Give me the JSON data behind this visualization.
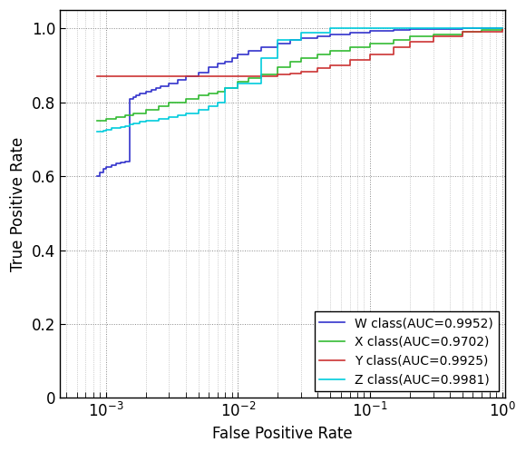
{
  "title": "",
  "xlabel": "False Positive Rate",
  "ylabel": "True Positive Rate",
  "ylim": [
    0,
    1.05
  ],
  "grid": true,
  "legend_loc": "lower right",
  "curves": [
    {
      "label": "W class(AUC=0.9952)",
      "color": "#3333CC",
      "x": [
        0.00085,
        0.0009,
        0.00095,
        0.001,
        0.0011,
        0.0012,
        0.0013,
        0.0014,
        0.0015,
        0.0016,
        0.0017,
        0.0018,
        0.002,
        0.0022,
        0.0024,
        0.0026,
        0.003,
        0.0035,
        0.004,
        0.005,
        0.006,
        0.007,
        0.008,
        0.009,
        0.01,
        0.012,
        0.015,
        0.02,
        0.025,
        0.03,
        0.04,
        0.05,
        0.07,
        0.1,
        0.15,
        0.2,
        0.3,
        0.5,
        0.7,
        1.0
      ],
      "y": [
        0.6,
        0.61,
        0.62,
        0.625,
        0.63,
        0.635,
        0.638,
        0.64,
        0.81,
        0.815,
        0.82,
        0.825,
        0.83,
        0.835,
        0.84,
        0.845,
        0.85,
        0.86,
        0.87,
        0.88,
        0.895,
        0.905,
        0.91,
        0.92,
        0.93,
        0.94,
        0.95,
        0.96,
        0.968,
        0.975,
        0.98,
        0.985,
        0.99,
        0.993,
        0.997,
        0.998,
        0.999,
        1.0,
        1.0,
        1.0
      ]
    },
    {
      "label": "X class(AUC=0.9702)",
      "color": "#33BB33",
      "x": [
        0.00085,
        0.001,
        0.0012,
        0.0014,
        0.0016,
        0.002,
        0.0025,
        0.003,
        0.004,
        0.005,
        0.006,
        0.007,
        0.008,
        0.01,
        0.012,
        0.015,
        0.02,
        0.025,
        0.03,
        0.04,
        0.05,
        0.07,
        0.1,
        0.15,
        0.2,
        0.3,
        0.5,
        0.7,
        1.0
      ],
      "y": [
        0.75,
        0.755,
        0.76,
        0.765,
        0.77,
        0.78,
        0.79,
        0.8,
        0.81,
        0.82,
        0.825,
        0.83,
        0.84,
        0.855,
        0.865,
        0.875,
        0.895,
        0.91,
        0.92,
        0.93,
        0.94,
        0.95,
        0.96,
        0.97,
        0.978,
        0.985,
        0.992,
        0.997,
        1.0
      ]
    },
    {
      "label": "Y class(AUC=0.9925)",
      "color": "#CC3333",
      "x": [
        0.00085,
        0.001,
        0.002,
        0.004,
        0.006,
        0.008,
        0.01,
        0.012,
        0.015,
        0.018,
        0.02,
        0.025,
        0.03,
        0.04,
        0.05,
        0.07,
        0.1,
        0.15,
        0.2,
        0.3,
        0.5,
        1.0
      ],
      "y": [
        0.87,
        0.87,
        0.87,
        0.87,
        0.87,
        0.87,
        0.87,
        0.87,
        0.87,
        0.87,
        0.875,
        0.878,
        0.882,
        0.892,
        0.9,
        0.915,
        0.93,
        0.95,
        0.965,
        0.98,
        0.992,
        1.0
      ]
    },
    {
      "label": "Z class(AUC=0.9981)",
      "color": "#00CCDD",
      "x": [
        0.00085,
        0.0009,
        0.00095,
        0.001,
        0.0011,
        0.0012,
        0.0013,
        0.0014,
        0.0015,
        0.0016,
        0.0017,
        0.0018,
        0.002,
        0.0025,
        0.003,
        0.0035,
        0.004,
        0.005,
        0.006,
        0.007,
        0.008,
        0.01,
        0.015,
        0.02,
        0.03,
        0.05,
        0.07,
        0.1,
        0.3,
        1.0
      ],
      "y": [
        0.72,
        0.722,
        0.724,
        0.727,
        0.73,
        0.732,
        0.734,
        0.736,
        0.74,
        0.742,
        0.744,
        0.748,
        0.75,
        0.755,
        0.76,
        0.765,
        0.77,
        0.78,
        0.79,
        0.8,
        0.84,
        0.85,
        0.92,
        0.97,
        0.99,
        1.0,
        1.0,
        1.0,
        1.0,
        1.0
      ]
    }
  ],
  "xticks": [
    0.001,
    0.01,
    0.1,
    1.0
  ],
  "xtick_labels": [
    "$10^{-3}$",
    "$10^{-2}$",
    "$10^{-1}$",
    "$10^{0}$"
  ],
  "yticks": [
    0,
    0.2,
    0.4,
    0.6,
    0.8,
    1.0
  ],
  "fontsize": 12,
  "legend_fontsize": 10,
  "linewidth": 1.2
}
